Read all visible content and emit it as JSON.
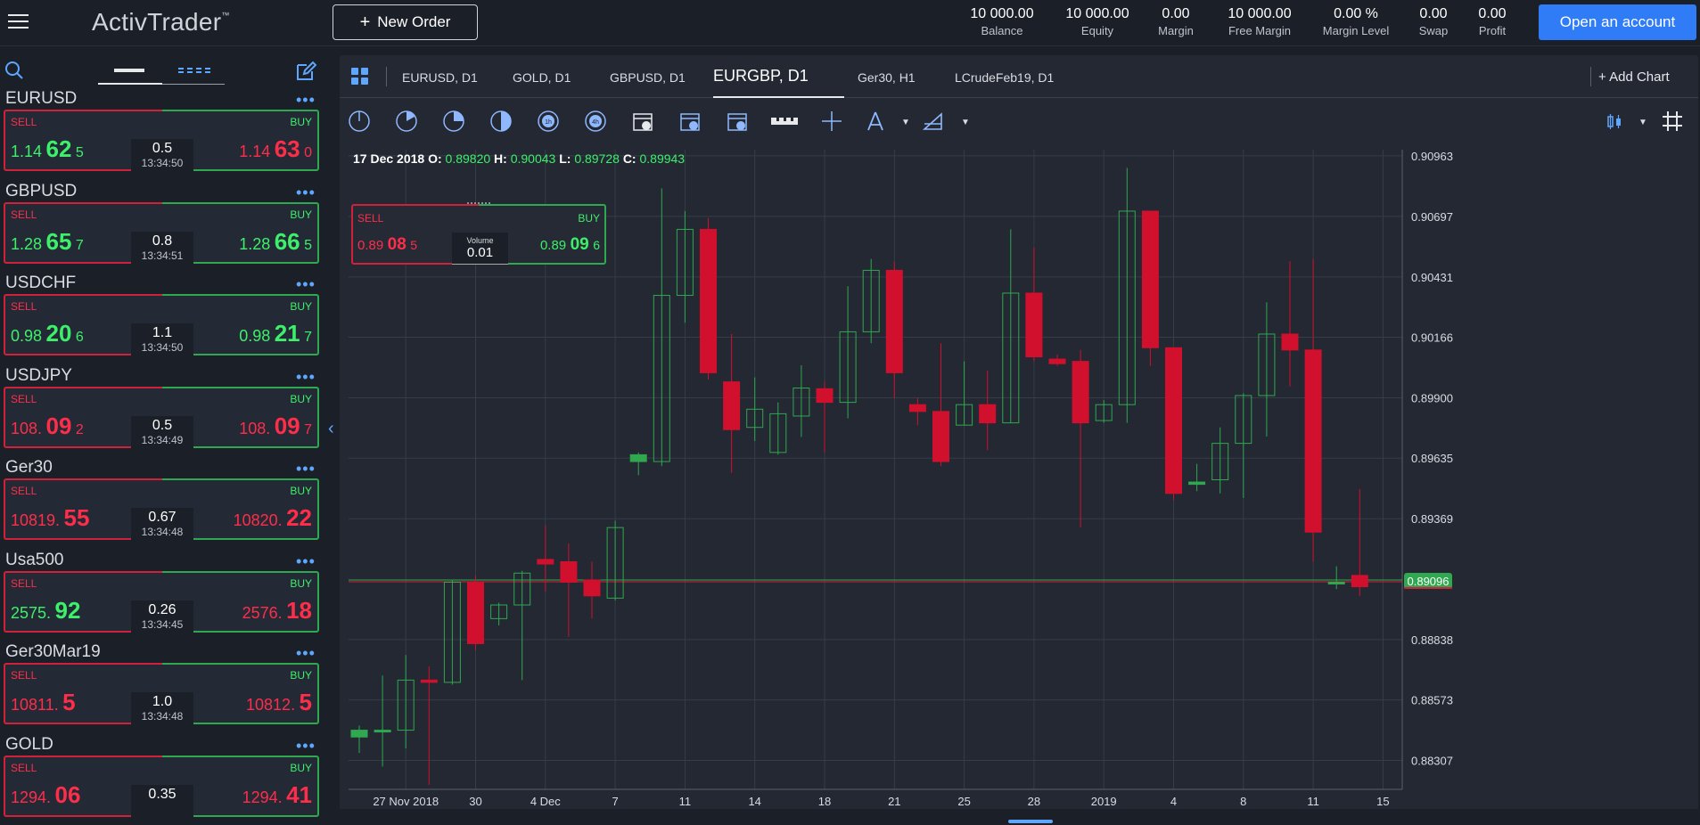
{
  "app": {
    "logo": "ActivTrader",
    "logo_tm": "™",
    "new_order_label": "New Order",
    "open_account_label": "Open an account"
  },
  "account": {
    "stats": [
      {
        "value": "10 000.00",
        "label": "Balance"
      },
      {
        "value": "10 000.00",
        "label": "Equity"
      },
      {
        "value": "0.00",
        "label": "Margin"
      },
      {
        "value": "10 000.00",
        "label": "Free Margin"
      },
      {
        "value": "0.00 %",
        "label": "Margin Level"
      },
      {
        "value": "0.00",
        "label": "Swap"
      },
      {
        "value": "0.00",
        "label": "Profit"
      }
    ]
  },
  "colors": {
    "accent": "#2f7cf6",
    "sell": "#ff2d4a",
    "buy": "#3df06a",
    "bearish_candle": "#d0102d",
    "bullish_candle_outline": "#2fa84f",
    "background": "#1b1f28",
    "chart_background": "#232833"
  },
  "icons": {
    "menu": "hamburger-icon",
    "search": "search-icon",
    "edit": "edit-icon",
    "layout": "grid-layout-icon",
    "add": "plus-icon"
  },
  "instruments": [
    {
      "name": "EURUSD",
      "sell_label": "SELL",
      "buy_label": "BUY",
      "sell": {
        "a": "1.14",
        "b": "62",
        "c": "5",
        "dir": "up"
      },
      "buy": {
        "a": "1.14",
        "b": "63",
        "c": "0",
        "dir": "dn"
      },
      "spread": "0.5",
      "time": "13:34:50"
    },
    {
      "name": "GBPUSD",
      "sell_label": "SELL",
      "buy_label": "BUY",
      "sell": {
        "a": "1.28",
        "b": "65",
        "c": "7",
        "dir": "up"
      },
      "buy": {
        "a": "1.28",
        "b": "66",
        "c": "5",
        "dir": "up"
      },
      "spread": "0.8",
      "time": "13:34:51"
    },
    {
      "name": "USDCHF",
      "sell_label": "SELL",
      "buy_label": "BUY",
      "sell": {
        "a": "0.98",
        "b": "20",
        "c": "6",
        "dir": "up"
      },
      "buy": {
        "a": "0.98",
        "b": "21",
        "c": "7",
        "dir": "up"
      },
      "spread": "1.1",
      "time": "13:34:50"
    },
    {
      "name": "USDJPY",
      "sell_label": "SELL",
      "buy_label": "BUY",
      "sell": {
        "a": "108.",
        "b": "09",
        "c": "2",
        "dir": "dn"
      },
      "buy": {
        "a": "108.",
        "b": "09",
        "c": "7",
        "dir": "dn"
      },
      "spread": "0.5",
      "time": "13:34:49"
    },
    {
      "name": "Ger30",
      "sell_label": "SELL",
      "buy_label": "BUY",
      "sell": {
        "a": "10819.",
        "b": "55",
        "c": "",
        "dir": "dn"
      },
      "buy": {
        "a": "10820.",
        "b": "22",
        "c": "",
        "dir": "dn"
      },
      "spread": "0.67",
      "time": "13:34:48"
    },
    {
      "name": "Usa500",
      "sell_label": "SELL",
      "buy_label": "BUY",
      "sell": {
        "a": "2575.",
        "b": "92",
        "c": "",
        "dir": "up"
      },
      "buy": {
        "a": "2576.",
        "b": "18",
        "c": "",
        "dir": "dn"
      },
      "spread": "0.26",
      "time": "13:34:45"
    },
    {
      "name": "Ger30Mar19",
      "sell_label": "SELL",
      "buy_label": "BUY",
      "sell": {
        "a": "10811.",
        "b": "5",
        "c": "",
        "dir": "dn"
      },
      "buy": {
        "a": "10812.",
        "b": "5",
        "c": "",
        "dir": "dn"
      },
      "spread": "1.0",
      "time": "13:34:48"
    },
    {
      "name": "GOLD",
      "sell_label": "SELL",
      "buy_label": "BUY",
      "sell": {
        "a": "1294.",
        "b": "06",
        "c": "",
        "dir": "dn"
      },
      "buy": {
        "a": "1294.",
        "b": "41",
        "c": "",
        "dir": "dn"
      },
      "spread": "0.35",
      "time": ""
    }
  ],
  "chart_tabs": [
    "EURUSD, D1",
    "GOLD, D1",
    "GBPUSD, D1",
    "EURGBP, D1",
    "Ger30, H1",
    "LCrudeFeb19, D1"
  ],
  "active_tab": "EURGBP, D1",
  "add_chart_label": "Add Chart",
  "ohlc": {
    "date": "17 Dec 2018",
    "o_label": "O:",
    "o": "0.89820",
    "h_label": "H:",
    "h": "0.90043",
    "l_label": "L:",
    "l": "0.89728",
    "c_label": "C:",
    "c": "0.89943"
  },
  "trade_widget": {
    "sell_label": "SELL",
    "buy_label": "BUY",
    "sell": {
      "a": "0.89",
      "b": "08",
      "c": "5"
    },
    "buy": {
      "a": "0.89",
      "b": "09",
      "c": "6"
    },
    "volume_label": "Volume",
    "volume": "0.01"
  },
  "chart_data": {
    "type": "candlestick",
    "instrument": "EURGBP",
    "timeframe": "D1",
    "y_ticks": [
      0.90963,
      0.90697,
      0.90431,
      0.90166,
      0.899,
      0.89635,
      0.89369,
      0.88838,
      0.88573,
      0.88307
    ],
    "y_tick_labels": [
      "0.90963",
      "0.90697",
      "0.90431",
      "0.90166",
      "0.89900",
      "0.89635",
      "0.89369",
      "0.88838",
      "0.88573",
      "0.88307"
    ],
    "ylim": [
      0.8818,
      0.9099
    ],
    "current_price": 0.89096,
    "current_price_label": "0.89096",
    "x_ticks": [
      {
        "label": "27 Nov 2018",
        "index": 2
      },
      {
        "label": "30",
        "index": 5
      },
      {
        "label": "4 Dec",
        "index": 8
      },
      {
        "label": "7",
        "index": 11
      },
      {
        "label": "11",
        "index": 14
      },
      {
        "label": "14",
        "index": 17
      },
      {
        "label": "18",
        "index": 20
      },
      {
        "label": "21",
        "index": 23
      },
      {
        "label": "25",
        "index": 26
      },
      {
        "label": "28",
        "index": 29
      },
      {
        "label": "2019",
        "index": 32
      },
      {
        "label": "4",
        "index": 35
      },
      {
        "label": "8",
        "index": 38
      },
      {
        "label": "11",
        "index": 41
      },
      {
        "label": "15",
        "index": 44
      }
    ],
    "candles": [
      {
        "o": 0.8841,
        "h": 0.8846,
        "l": 0.8834,
        "c": 0.8844
      },
      {
        "o": 0.8844,
        "h": 0.8868,
        "l": 0.8828,
        "c": 0.8844
      },
      {
        "o": 0.8844,
        "h": 0.8877,
        "l": 0.8836,
        "c": 0.8866
      },
      {
        "o": 0.8866,
        "h": 0.8872,
        "l": 0.882,
        "c": 0.8865
      },
      {
        "o": 0.8865,
        "h": 0.891,
        "l": 0.8864,
        "c": 0.8909
      },
      {
        "o": 0.8909,
        "h": 0.8912,
        "l": 0.8879,
        "c": 0.8882
      },
      {
        "o": 0.8893,
        "h": 0.89,
        "l": 0.889,
        "c": 0.8899
      },
      {
        "o": 0.8899,
        "h": 0.8914,
        "l": 0.8866,
        "c": 0.8913
      },
      {
        "o": 0.8919,
        "h": 0.8934,
        "l": 0.8905,
        "c": 0.8917
      },
      {
        "o": 0.8918,
        "h": 0.8926,
        "l": 0.8885,
        "c": 0.8909
      },
      {
        "o": 0.891,
        "h": 0.8918,
        "l": 0.8893,
        "c": 0.8903
      },
      {
        "o": 0.8902,
        "h": 0.8936,
        "l": 0.8901,
        "c": 0.8933
      },
      {
        "o": 0.8962,
        "h": 0.8966,
        "l": 0.8956,
        "c": 0.8965
      },
      {
        "o": 0.8962,
        "h": 0.9082,
        "l": 0.896,
        "c": 0.9035
      },
      {
        "o": 0.9035,
        "h": 0.9072,
        "l": 0.9023,
        "c": 0.9064
      },
      {
        "o": 0.9064,
        "h": 0.9069,
        "l": 0.8998,
        "c": 0.9001
      },
      {
        "o": 0.8997,
        "h": 0.9018,
        "l": 0.8957,
        "c": 0.8976
      },
      {
        "o": 0.8977,
        "h": 0.8999,
        "l": 0.8971,
        "c": 0.8985
      },
      {
        "o": 0.8966,
        "h": 0.8988,
        "l": 0.8965,
        "c": 0.8983
      },
      {
        "o": 0.8982,
        "h": 0.90043,
        "l": 0.89728,
        "c": 0.89943
      },
      {
        "o": 0.8994,
        "h": 0.8997,
        "l": 0.8966,
        "c": 0.8988
      },
      {
        "o": 0.8988,
        "h": 0.9039,
        "l": 0.8981,
        "c": 0.9019
      },
      {
        "o": 0.9019,
        "h": 0.9051,
        "l": 0.9014,
        "c": 0.9046
      },
      {
        "o": 0.9046,
        "h": 0.905,
        "l": 0.899,
        "c": 0.9001
      },
      {
        "o": 0.8987,
        "h": 0.899,
        "l": 0.8978,
        "c": 0.8984
      },
      {
        "o": 0.8984,
        "h": 0.9014,
        "l": 0.896,
        "c": 0.8962
      },
      {
        "o": 0.8978,
        "h": 0.9006,
        "l": 0.8978,
        "c": 0.8987
      },
      {
        "o": 0.8987,
        "h": 0.9002,
        "l": 0.8967,
        "c": 0.8979
      },
      {
        "o": 0.8979,
        "h": 0.9064,
        "l": 0.8979,
        "c": 0.9036
      },
      {
        "o": 0.9036,
        "h": 0.9056,
        "l": 0.9006,
        "c": 0.9008
      },
      {
        "o": 0.9007,
        "h": 0.9009,
        "l": 0.9004,
        "c": 0.9005
      },
      {
        "o": 0.9006,
        "h": 0.9011,
        "l": 0.8933,
        "c": 0.8979
      },
      {
        "o": 0.898,
        "h": 0.8989,
        "l": 0.8979,
        "c": 0.8987
      },
      {
        "o": 0.8987,
        "h": 0.9091,
        "l": 0.8979,
        "c": 0.9072
      },
      {
        "o": 0.9072,
        "h": 0.9072,
        "l": 0.9004,
        "c": 0.9012
      },
      {
        "o": 0.9012,
        "h": 0.9012,
        "l": 0.8945,
        "c": 0.8948
      },
      {
        "o": 0.8952,
        "h": 0.8961,
        "l": 0.8949,
        "c": 0.8953
      },
      {
        "o": 0.8954,
        "h": 0.8977,
        "l": 0.8948,
        "c": 0.897
      },
      {
        "o": 0.897,
        "h": 0.8992,
        "l": 0.8946,
        "c": 0.8991
      },
      {
        "o": 0.8991,
        "h": 0.9032,
        "l": 0.8973,
        "c": 0.9018
      },
      {
        "o": 0.9018,
        "h": 0.905,
        "l": 0.8995,
        "c": 0.9011
      },
      {
        "o": 0.9011,
        "h": 0.9051,
        "l": 0.8918,
        "c": 0.8931
      },
      {
        "o": 0.8909,
        "h": 0.8916,
        "l": 0.8906,
        "c": 0.8909
      },
      {
        "o": 0.8912,
        "h": 0.895,
        "l": 0.8903,
        "c": 0.8907
      }
    ]
  }
}
